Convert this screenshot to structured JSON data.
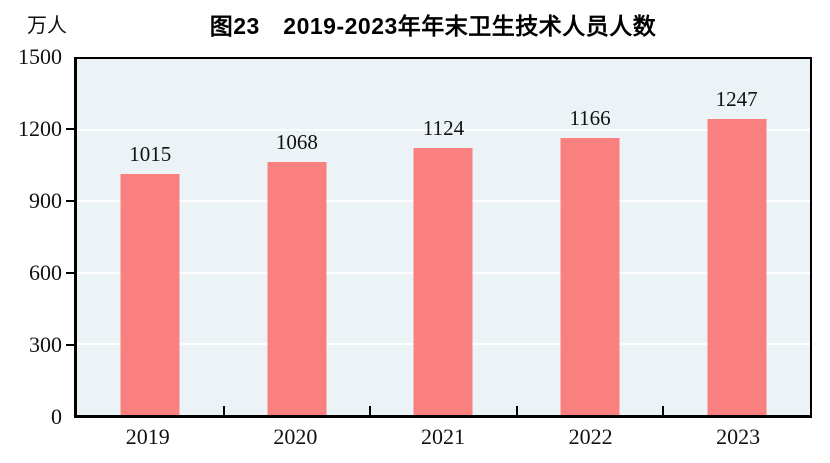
{
  "chart_data": {
    "type": "bar",
    "title": "图23　2019-2023年年末卫生技术人员人数",
    "ylabel": "万人",
    "xlabel": "",
    "categories": [
      "2019",
      "2020",
      "2021",
      "2022",
      "2023"
    ],
    "values": [
      1015,
      1068,
      1124,
      1166,
      1247
    ],
    "yticks": [
      0,
      300,
      600,
      900,
      1200,
      1500
    ],
    "ylim": [
      0,
      1500
    ],
    "grid": "horizontal",
    "legend_position": "none",
    "colors": {
      "bar": "#FA8080",
      "plot_background": "#EBF3F6",
      "gridline": "#FFFFFF",
      "axis": "#000000",
      "text": "#111111",
      "page_background": "#FFFFFF"
    }
  }
}
